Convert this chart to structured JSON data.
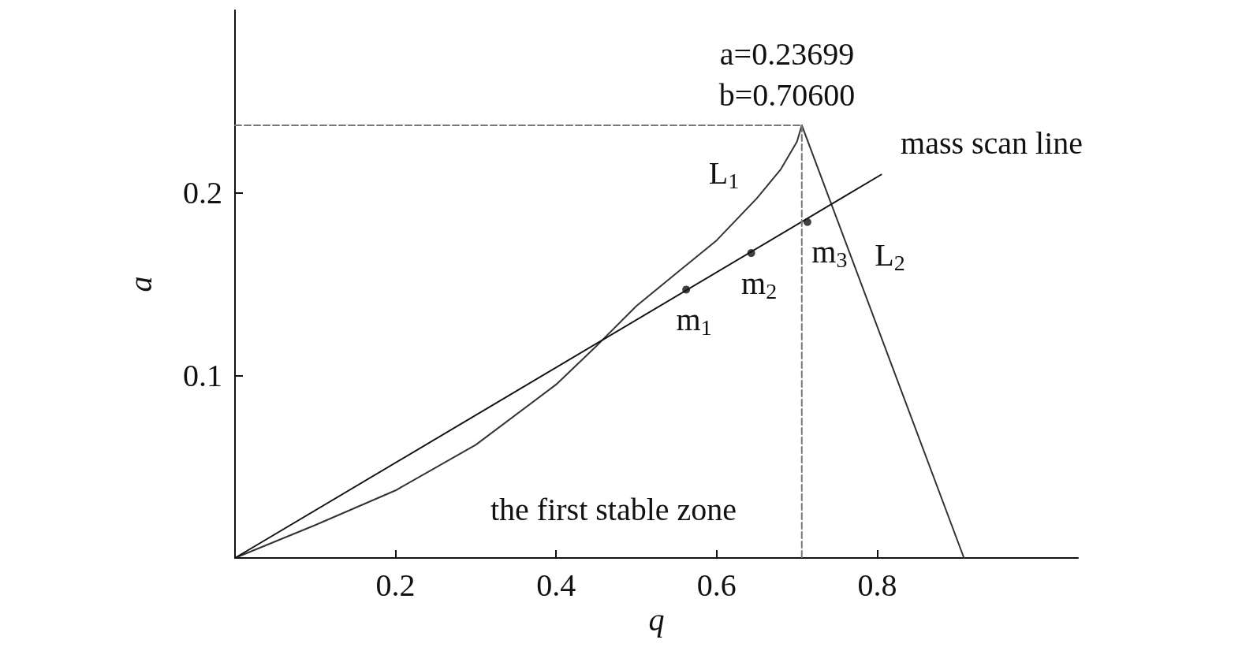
{
  "chart_data": {
    "type": "line",
    "xlabel": "q",
    "ylabel": "a",
    "xlim": [
      0,
      1.05
    ],
    "ylim": [
      0,
      0.3
    ],
    "xticks": [
      0.2,
      0.4,
      0.6,
      0.8
    ],
    "yticks": [
      0.1,
      0.2
    ],
    "grid": false,
    "marker": "none",
    "series": [
      {
        "name": "L$_{1}$",
        "color": "#333333",
        "x": [
          0,
          0.1,
          0.2,
          0.3,
          0.4,
          0.45,
          0.5,
          0.55,
          0.6,
          0.65,
          0.68,
          0.7,
          0.706
        ],
        "values": [
          0,
          0.018,
          0.037,
          0.062,
          0.095,
          0.116,
          0.138,
          0.156,
          0.174,
          0.197,
          0.213,
          0.228,
          0.237
        ]
      },
      {
        "name": "L$_{2}$",
        "color": "#333333",
        "x": [
          0.706,
          0.908
        ],
        "values": [
          0.237,
          0
        ]
      },
      {
        "name": "mass scan line",
        "color": "#111111",
        "x": [
          0,
          0.805
        ],
        "values": [
          0,
          0.21
        ]
      },
      {
        "color": "#777777",
        "line_style": "dashed",
        "x": [
          0,
          0.706
        ],
        "values": [
          0.237,
          0.237
        ]
      },
      {
        "color": "#777777",
        "line_style": "dashed",
        "x": [
          0.706,
          0.706
        ],
        "values": [
          0.237,
          0
        ]
      },
      {
        "name": "m$_{1}$",
        "type": "scatter",
        "marker": "circle",
        "color": "#111111",
        "x": [
          0.562
        ],
        "values": [
          0.147
        ]
      },
      {
        "name": "m$_{2}$",
        "type": "scatter",
        "marker": "circle",
        "color": "#111111",
        "x": [
          0.643
        ],
        "values": [
          0.167
        ]
      },
      {
        "name": "m$_{3}$",
        "type": "scatter",
        "marker": "circle",
        "color": "#111111",
        "x": [
          0.713
        ],
        "values": [
          0.184
        ]
      }
    ],
    "annotations": [
      "a=0.23699",
      "b=0.70600",
      "the first stable zone"
    ]
  }
}
